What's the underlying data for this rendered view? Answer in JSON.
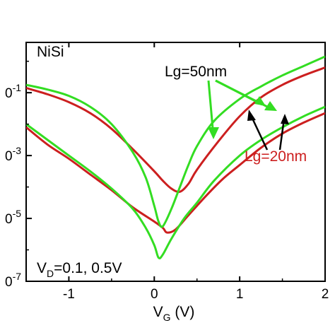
{
  "chart_data": {
    "type": "line",
    "xlabel_main": "V",
    "xlabel_sub": "G",
    "xlabel_unit": " (V)",
    "xlim": [
      -1.5,
      2
    ],
    "ylog": true,
    "ylim_exp": [
      -7,
      0.6
    ],
    "x_ticks": [
      {
        "value": -1,
        "label": "-1"
      },
      {
        "value": 0,
        "label": "0"
      },
      {
        "value": 1,
        "label": "1"
      },
      {
        "value": 2,
        "label": "2"
      }
    ],
    "y_ticks": [
      {
        "exp": -1,
        "base": "0",
        "sup": "-1"
      },
      {
        "exp": -3,
        "base": "0",
        "sup": "-3"
      },
      {
        "exp": -5,
        "base": "0",
        "sup": "-5"
      },
      {
        "exp": -7,
        "base": "0",
        "sup": "-7"
      }
    ],
    "grid": false,
    "annotations": {
      "material": "NiSi",
      "bias_main": "V",
      "bias_sub": "D",
      "bias_rest": "=0.1, 0.5V",
      "label_50": "Lg=50nm",
      "label_20": "Lg=20nm"
    },
    "colors": {
      "lg50": "#33dd22",
      "lg20": "#cc1f1f",
      "arrow_green": "#33dd22",
      "arrow_black": "#000000"
    },
    "series": [
      {
        "group": "lg50",
        "points": [
          [
            -1.5,
            -0.75
          ],
          [
            -1.25,
            -0.9
          ],
          [
            -1.0,
            -1.1
          ],
          [
            -0.75,
            -1.45
          ],
          [
            -0.5,
            -2.0
          ],
          [
            -0.25,
            -2.9
          ],
          [
            -0.1,
            -3.7
          ],
          [
            0.0,
            -4.6
          ],
          [
            0.05,
            -5.1
          ],
          [
            0.1,
            -5.25
          ],
          [
            0.2,
            -4.7
          ],
          [
            0.3,
            -4.0
          ],
          [
            0.4,
            -3.3
          ],
          [
            0.5,
            -2.7
          ],
          [
            0.7,
            -1.9
          ],
          [
            1.0,
            -1.2
          ],
          [
            1.25,
            -0.8
          ],
          [
            1.5,
            -0.45
          ],
          [
            1.75,
            -0.15
          ],
          [
            2.0,
            0.15
          ]
        ]
      },
      {
        "group": "lg50",
        "points": [
          [
            -1.5,
            -2.0
          ],
          [
            -1.25,
            -2.5
          ],
          [
            -1.0,
            -3.0
          ],
          [
            -0.75,
            -3.5
          ],
          [
            -0.5,
            -4.05
          ],
          [
            -0.25,
            -4.7
          ],
          [
            -0.1,
            -5.3
          ],
          [
            0.0,
            -5.85
          ],
          [
            0.05,
            -6.25
          ],
          [
            0.1,
            -6.15
          ],
          [
            0.2,
            -5.65
          ],
          [
            0.35,
            -5.0
          ],
          [
            0.5,
            -4.5
          ],
          [
            0.7,
            -3.8
          ],
          [
            1.0,
            -3.0
          ],
          [
            1.25,
            -2.5
          ],
          [
            1.5,
            -2.1
          ],
          [
            1.75,
            -1.75
          ],
          [
            2.0,
            -1.45
          ]
        ]
      },
      {
        "group": "lg20",
        "points": [
          [
            -1.5,
            -0.85
          ],
          [
            -1.25,
            -1.05
          ],
          [
            -1.0,
            -1.3
          ],
          [
            -0.75,
            -1.65
          ],
          [
            -0.5,
            -2.15
          ],
          [
            -0.25,
            -2.8
          ],
          [
            0.0,
            -3.5
          ],
          [
            0.1,
            -3.8
          ],
          [
            0.2,
            -4.05
          ],
          [
            0.3,
            -4.15
          ],
          [
            0.4,
            -3.9
          ],
          [
            0.5,
            -3.45
          ],
          [
            0.75,
            -2.55
          ],
          [
            1.0,
            -1.75
          ],
          [
            1.25,
            -1.15
          ],
          [
            1.5,
            -0.75
          ],
          [
            1.75,
            -0.45
          ],
          [
            2.0,
            -0.2
          ]
        ]
      },
      {
        "group": "lg20",
        "points": [
          [
            -1.5,
            -2.1
          ],
          [
            -1.25,
            -2.65
          ],
          [
            -1.0,
            -3.1
          ],
          [
            -0.75,
            -3.6
          ],
          [
            -0.5,
            -4.1
          ],
          [
            -0.25,
            -4.65
          ],
          [
            0.0,
            -5.1
          ],
          [
            0.1,
            -5.3
          ],
          [
            0.15,
            -5.45
          ],
          [
            0.25,
            -5.35
          ],
          [
            0.4,
            -4.9
          ],
          [
            0.6,
            -4.3
          ],
          [
            0.8,
            -3.75
          ],
          [
            1.0,
            -3.3
          ],
          [
            1.25,
            -2.75
          ],
          [
            1.5,
            -2.3
          ],
          [
            1.75,
            -1.95
          ],
          [
            2.0,
            -1.65
          ]
        ]
      }
    ]
  }
}
